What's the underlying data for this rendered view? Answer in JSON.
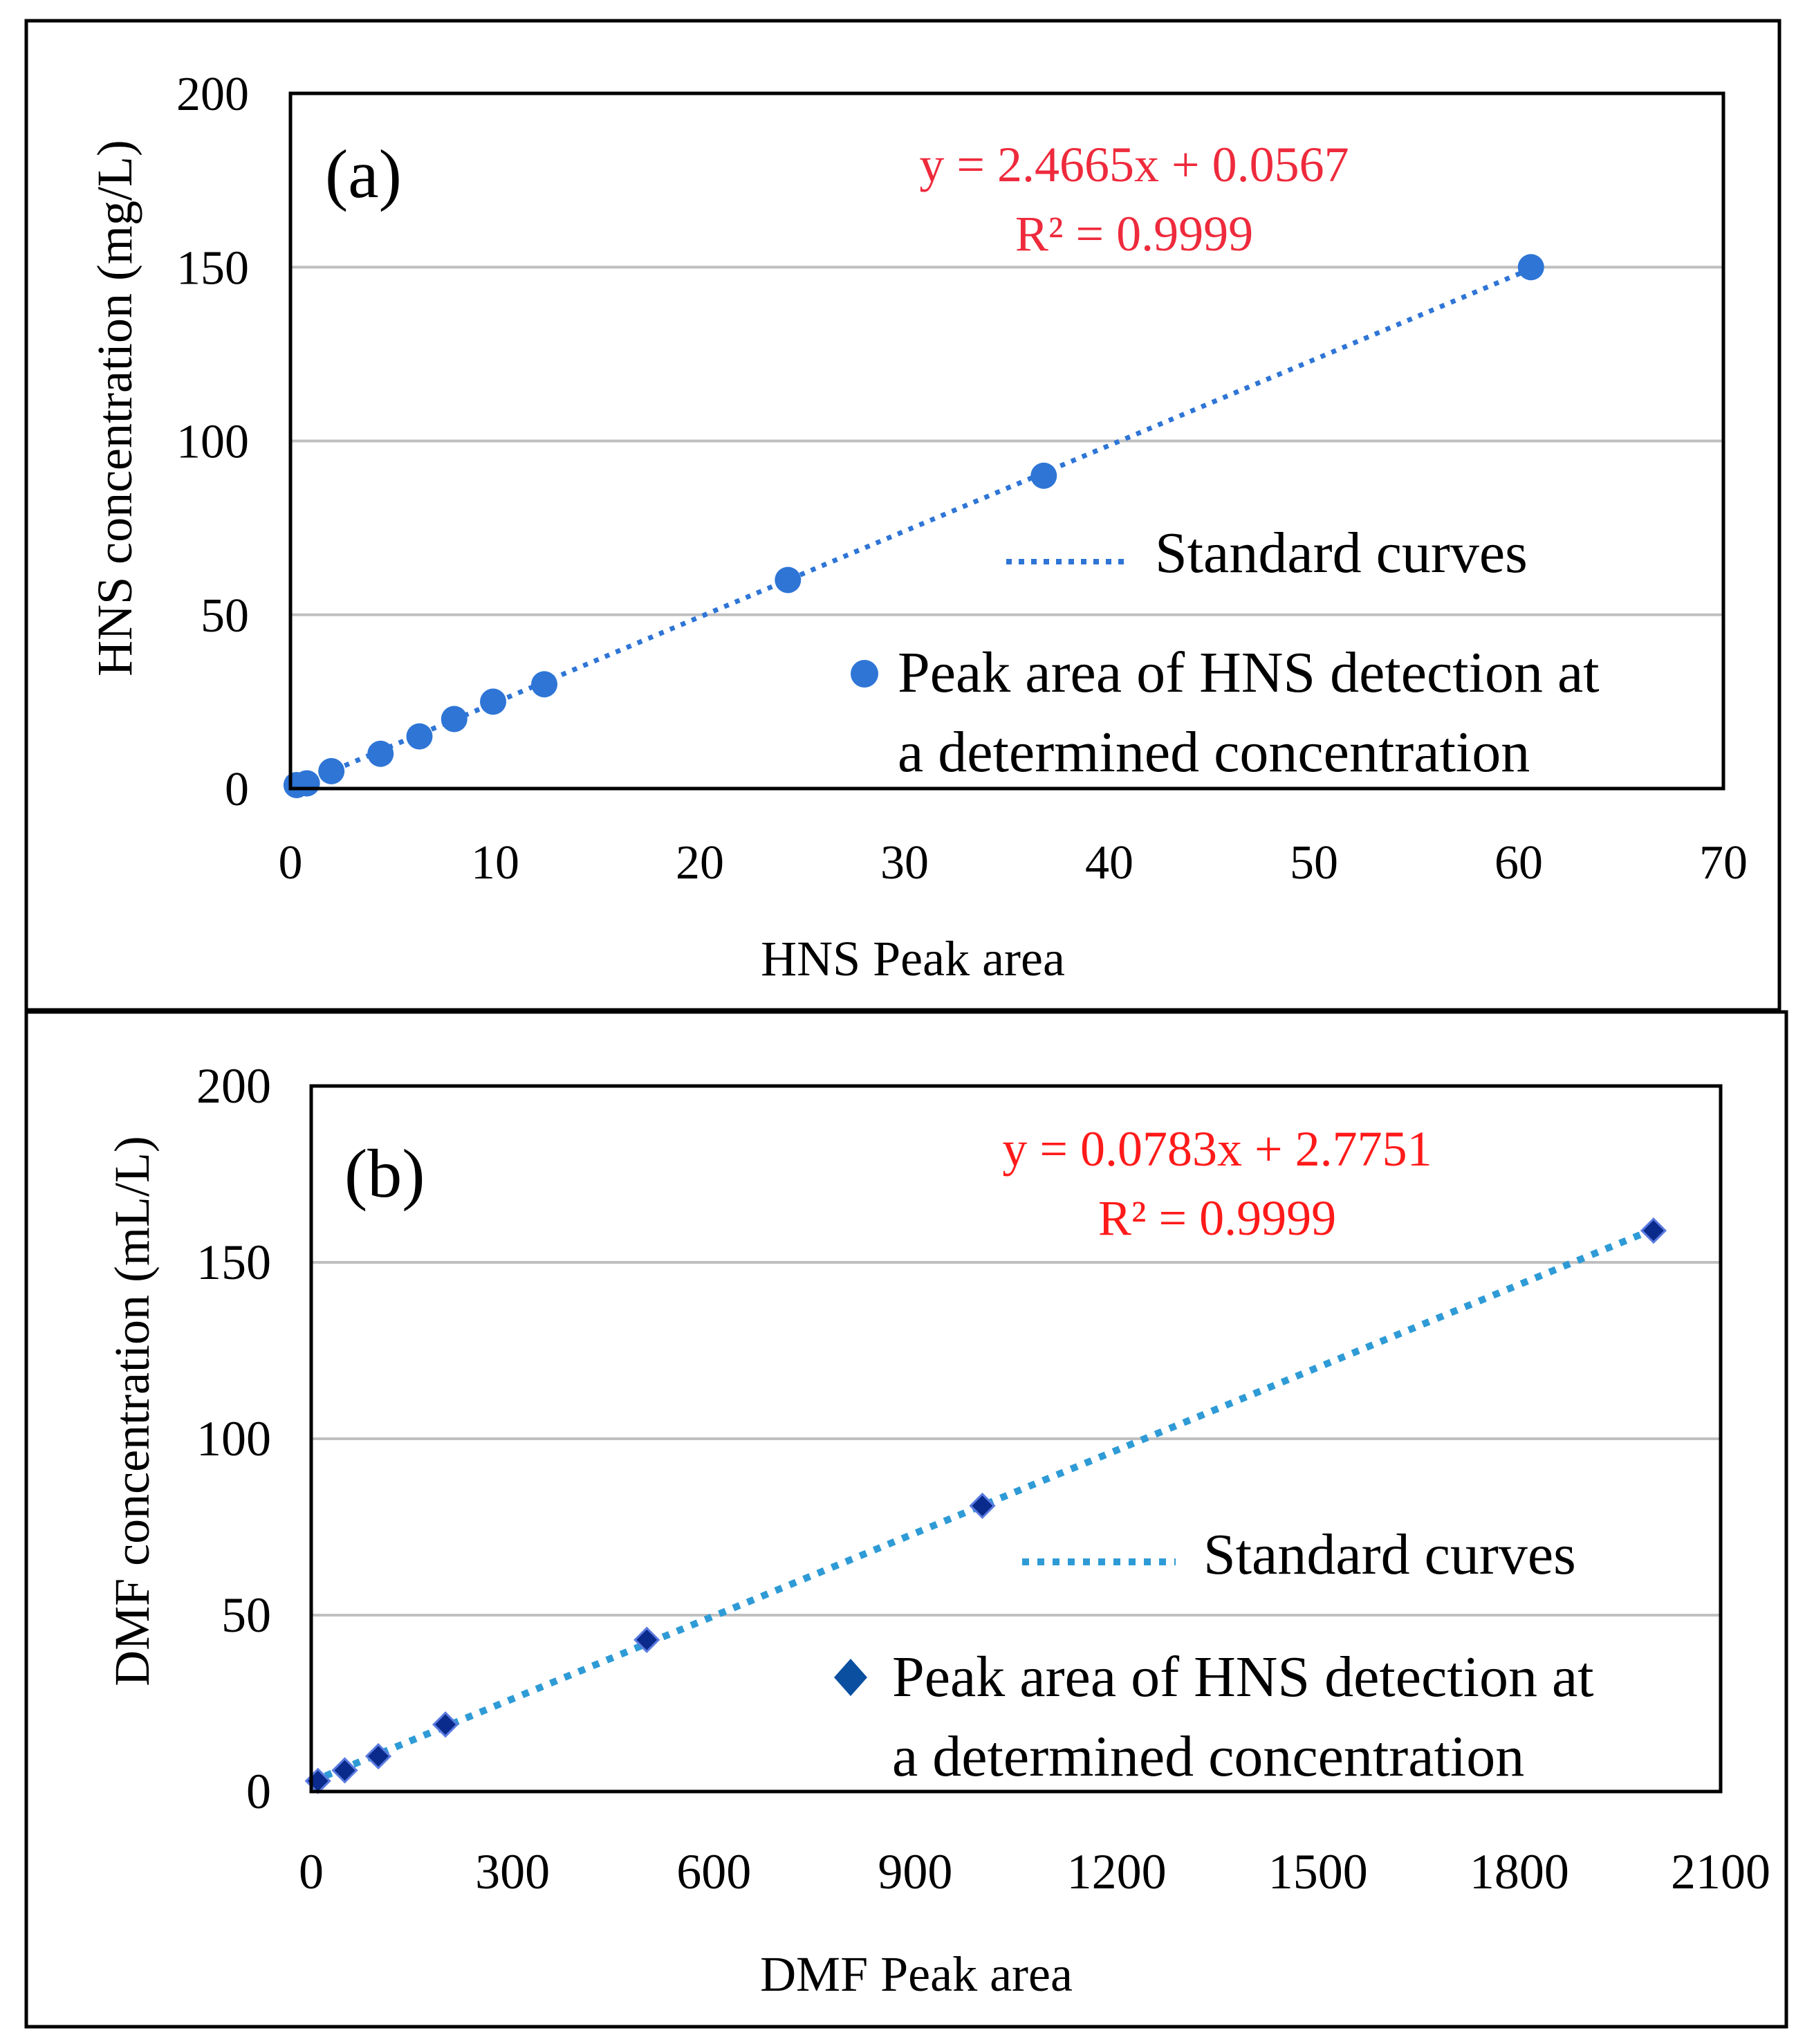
{
  "chart_data": [
    {
      "panel_label": "(a)",
      "type": "scatter",
      "xlabel": "HNS Peak area",
      "ylabel": "HNS concentration (mg/L)",
      "xlim": [
        0,
        70
      ],
      "ylim": [
        0,
        200
      ],
      "xticks": [
        "0",
        "10",
        "20",
        "30",
        "40",
        "50",
        "60",
        "70"
      ],
      "yticks": [
        "0",
        "50",
        "100",
        "150",
        "200"
      ],
      "grid": "horizontal",
      "legend_position": "right",
      "series": [
        {
          "name": "Peak area of HNS detection at a determined concentration",
          "marker": "circle",
          "color": "#2E75D6",
          "x": [
            0.3,
            0.8,
            2.0,
            4.4,
            6.3,
            8.0,
            9.9,
            12.4,
            24.3,
            36.8,
            60.6
          ],
          "y": [
            1,
            1.5,
            5,
            10,
            15,
            20,
            25,
            30,
            60,
            90,
            150
          ]
        }
      ],
      "trendline": {
        "name": "Standard curves",
        "slope": 2.4665,
        "intercept": 0.0567,
        "x_range": [
          0,
          60.6
        ],
        "color": "#2E75D6",
        "equation": "y = 2.4665x + 0.0567",
        "r2": "R² = 0.9999"
      },
      "legend": {
        "line_label": "Standard curves",
        "marker_label_line1": "Peak area of HNS detection at",
        "marker_label_line2": "a determined concentration"
      },
      "annotation_color": "#EE2A3C"
    },
    {
      "panel_label": "(b)",
      "type": "scatter",
      "xlabel": "DMF Peak area",
      "ylabel": "DMF concentration (mL/L)",
      "xlim": [
        0,
        2100
      ],
      "ylim": [
        0,
        200
      ],
      "xticks": [
        "0",
        "300",
        "600",
        "900",
        "1200",
        "1500",
        "1800",
        "2100"
      ],
      "yticks": [
        "0",
        "50",
        "100",
        "150",
        "200"
      ],
      "grid": "horizontal",
      "legend_position": "right",
      "series": [
        {
          "name": "Peak area of HNS detection at a determined concentration",
          "marker": "diamond",
          "color": "#0A2A8C",
          "x": [
            10,
            50,
            100,
            200,
            500,
            1000,
            2000
          ],
          "y": [
            3,
            6,
            10,
            19,
            43,
            81,
            159
          ]
        }
      ],
      "trendline": {
        "name": "Standard curves",
        "slope": 0.0783,
        "intercept": 2.7751,
        "x_range": [
          0,
          2000
        ],
        "color": "#2E9BD6",
        "equation": "y = 0.0783x + 2.7751",
        "r2": "R² = 0.9999"
      },
      "legend": {
        "line_label": "Standard curves",
        "marker_label_line1": "Peak area of HNS detection at",
        "marker_label_line2": "a determined concentration"
      },
      "annotation_color": "#FF1A1A"
    }
  ]
}
